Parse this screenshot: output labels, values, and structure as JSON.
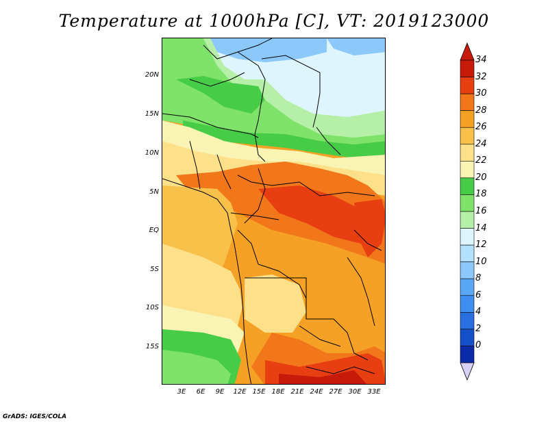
{
  "title": "Temperature at 1000hPa [C], VT: 2019123000",
  "footer": "GrADS: IGES/COLA",
  "map": {
    "lat_labels": [
      "20N",
      "15N",
      "10N",
      "5N",
      "EQ",
      "5S",
      "10S",
      "15S"
    ],
    "lon_labels": [
      "3E",
      "6E",
      "9E",
      "12E",
      "15E",
      "18E",
      "21E",
      "24E",
      "27E",
      "30E",
      "33E"
    ]
  },
  "colorbar": {
    "levels": [
      "0",
      "2",
      "4",
      "6",
      "8",
      "10",
      "12",
      "14",
      "16",
      "18",
      "20",
      "22",
      "24",
      "26",
      "28",
      "30",
      "32",
      "34"
    ],
    "colors": [
      "#0a0a6e",
      "#0b2ba8",
      "#1450c8",
      "#2a6fe0",
      "#3f8ef0",
      "#5aa8f5",
      "#8cc8fa",
      "#b4e1fc",
      "#dff5fd",
      "#b6f0a8",
      "#7fe36b",
      "#47cc47",
      "#faf4b4",
      "#fde08a",
      "#f7c14a",
      "#f5a125",
      "#f2761a",
      "#e83f12",
      "#c81a0a"
    ],
    "over_color": "#c81a0a",
    "under_color": "#d8d0f5"
  }
}
